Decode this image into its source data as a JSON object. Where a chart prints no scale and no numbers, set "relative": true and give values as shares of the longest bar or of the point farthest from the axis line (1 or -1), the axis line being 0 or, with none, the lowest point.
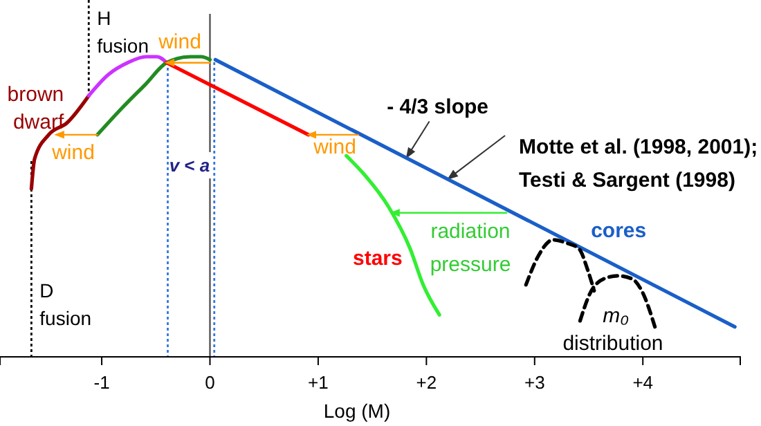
{
  "chart_data": {
    "type": "line",
    "relative": true,
    "xlabel": "Log (M)",
    "xlim": [
      -1.94,
      4.9
    ],
    "xticks": [
      -1,
      0,
      {
        "value": 1,
        "label": "+1"
      },
      {
        "value": 2,
        "label": "+2"
      },
      {
        "value": 3,
        "label": "+3"
      },
      {
        "value": 4,
        "label": "+4"
      }
    ],
    "tick_labels": "x",
    "series": [
      {
        "name": "brown dwarf",
        "color": "#990000",
        "x": [
          -1.65,
          -1.62,
          -1.49,
          -1.32,
          -1.12
        ],
        "values": [
          0.56,
          0.66,
          0.74,
          0.78,
          0.87
        ]
      },
      {
        "color": "#cc33ff",
        "x": [
          -1.12,
          -0.94,
          -0.76,
          -0.59,
          -0.49,
          -0.4
        ],
        "values": [
          0.87,
          0.94,
          0.98,
          1.0,
          1.0,
          0.98
        ]
      },
      {
        "color": "#228b22",
        "x": [
          -1.04,
          -0.81,
          -0.59,
          -0.4,
          -0.18,
          -0.08,
          0
        ],
        "values": [
          0.74,
          0.83,
          0.91,
          0.98,
          1.0,
          1.0,
          0.99
        ]
      },
      {
        "name": "stars",
        "color": "#ff0000",
        "x": [
          -0.4,
          0.91
        ],
        "values": [
          0.98,
          0.74
        ]
      },
      {
        "name": "cores",
        "color": "#1a5fc8",
        "x": [
          0.05,
          4.85
        ],
        "values": [
          0.99,
          0.1
        ]
      },
      {
        "color": "#33ee33",
        "x": [
          1.26,
          1.42,
          1.65,
          1.85,
          1.97,
          2.12
        ],
        "values": [
          0.67,
          0.61,
          0.5,
          0.36,
          0.24,
          0.14
        ]
      },
      {
        "color": "#000000",
        "line_style": "dashed",
        "x": [
          2.92,
          3.04,
          3.17,
          3.29,
          3.41,
          3.49,
          3.55
        ],
        "values": [
          0.24,
          0.34,
          0.39,
          0.38,
          0.36,
          0.29,
          0.22
        ]
      },
      {
        "color": "#000000",
        "line_style": "dashed",
        "x": [
          3.42,
          3.51,
          3.64,
          3.77,
          3.9,
          3.99,
          4.12
        ],
        "values": [
          0.12,
          0.21,
          0.26,
          0.27,
          0.26,
          0.22,
          0.09
        ]
      },
      {
        "color": "#ff9900",
        "x": [
          -1.04,
          -1.42
        ],
        "values": [
          0.74,
          0.74
        ]
      },
      {
        "color": "#ff9900",
        "x": [
          0,
          -0.4
        ],
        "values": [
          0.98,
          0.98
        ]
      },
      {
        "color": "#ff9900",
        "x": [
          1.37,
          0.91
        ],
        "values": [
          0.74,
          0.74
        ]
      },
      {
        "color": "#33ee33",
        "x": [
          2.74,
          1.68
        ],
        "values": [
          0.48,
          0.48
        ]
      }
    ],
    "ref_lines": [
      {
        "axis": "x",
        "value": -1.65,
        "label": "D fusion",
        "color": "#000000",
        "line_style": "dotted"
      },
      {
        "axis": "x",
        "value": -1.12,
        "label": "H fusion",
        "color": "#000000",
        "line_style": "dotted"
      },
      {
        "axis": "x",
        "value": -0.39,
        "color": "#3377dd",
        "line_style": "dotted"
      },
      {
        "axis": "x",
        "value": 0.04,
        "color": "#3377dd",
        "line_style": "dotted"
      },
      {
        "axis": "x",
        "value": 0,
        "color": "#555555",
        "line_style": "solid"
      }
    ],
    "annotations": [
      "wind",
      "wind",
      "wind",
      "radiation pressure",
      {
        "text": "- 4/3 slope",
        "x": 1.81,
        "y": 0.66
      },
      {
        "text": "Motte et al. (1998, 2001);",
        "x": 2.19,
        "y": 0.59
      },
      "Testi & Sargent (1998)",
      "m₀",
      "distribution",
      "v < a"
    ]
  }
}
